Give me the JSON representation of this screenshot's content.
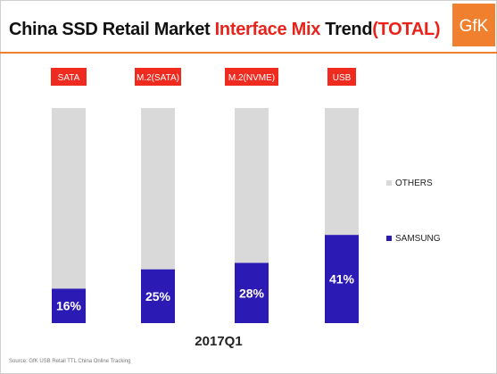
{
  "header": {
    "title_part1": "China SSD Retail Market ",
    "title_accent1": "Interface Mix",
    "title_part2": " Trend",
    "title_accent2": "(TOTAL)",
    "logo_text": "GfK"
  },
  "footer": {
    "period": "2017Q1",
    "source": "Source: GfK USB Retail TTL China Online Tracking"
  },
  "colors": {
    "samsung": "#2b1ab4",
    "others": "#d9d9d9",
    "label_bg": "#ef2a1f",
    "accent": "#e8231c",
    "logo": "#f07f2e"
  },
  "chart_data": {
    "type": "bar",
    "stacked": true,
    "percent": true,
    "categories": [
      "SATA",
      "M.2(SATA)",
      "M.2(NVME)",
      "USB"
    ],
    "series": [
      {
        "name": "SAMSUNG",
        "values": [
          16,
          25,
          28,
          41
        ]
      },
      {
        "name": "OTHERS",
        "values": [
          84,
          75,
          72,
          59
        ]
      }
    ],
    "data_labels": [
      "16%",
      "25%",
      "28%",
      "41%"
    ],
    "legend": [
      "OTHERS",
      "SAMSUNG"
    ],
    "legend_position": "right",
    "ylim": [
      0,
      100
    ],
    "grid": false
  }
}
